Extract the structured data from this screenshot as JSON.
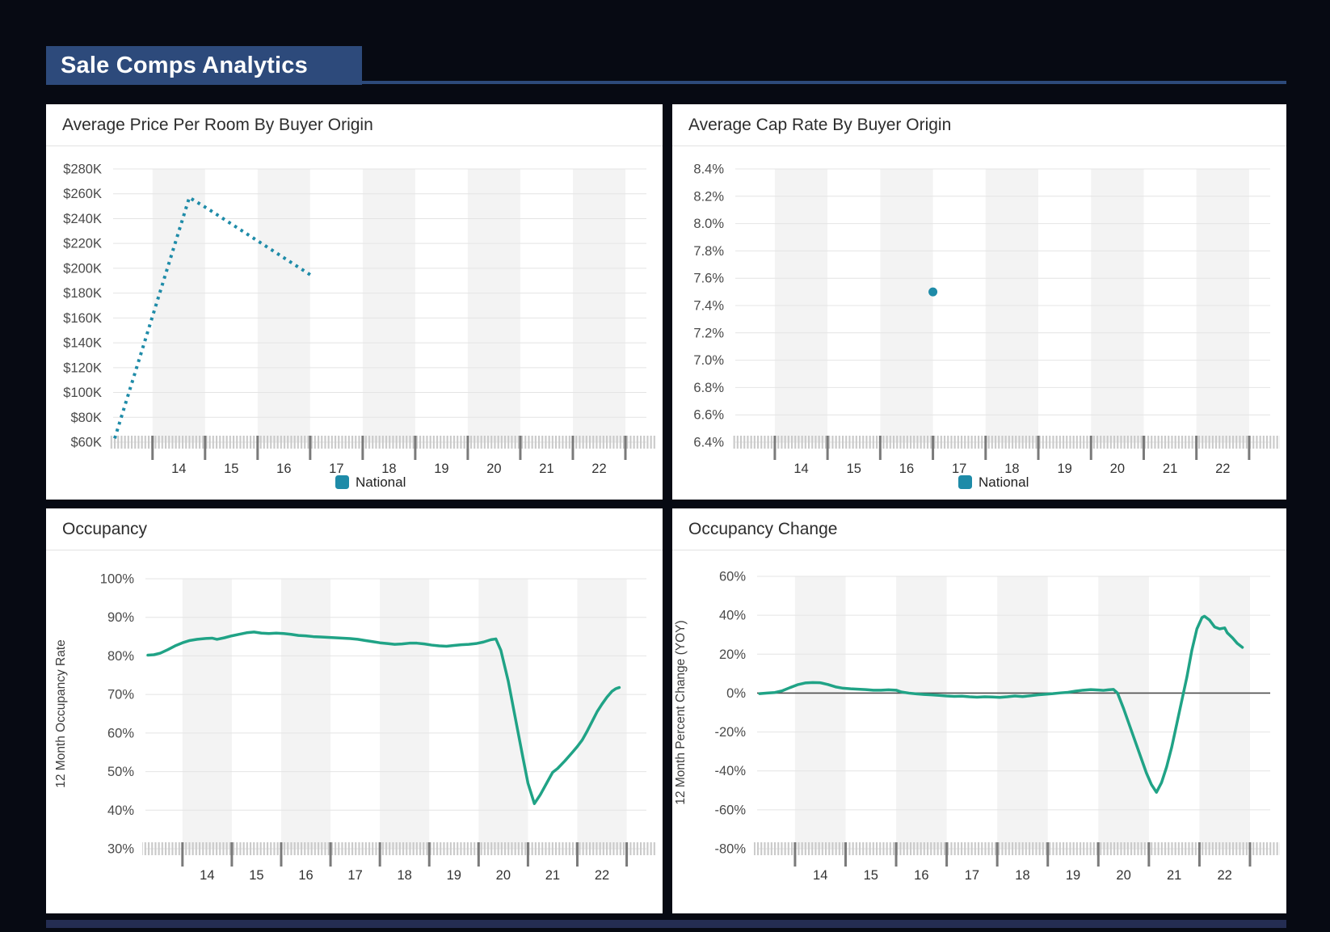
{
  "page": {
    "title": "Sale Comps Analytics"
  },
  "colors": {
    "accent_teal": "#1e8ba8",
    "accent_green": "#20a386",
    "band": "#f3f3f3",
    "grid": "#e4e4e4",
    "zero_line": "#4d4d4d",
    "tick_minor": "#c9c9c9",
    "tick_major": "#7a7a7a",
    "axis_text": "#4a4a4a",
    "x_label_text": "#333333",
    "legend_text": "#222222",
    "header_bg": "#2d4a7b",
    "footer_bg": "#242d52",
    "page_bg": "#070a13",
    "panel_bg": "#ffffff"
  },
  "axis": {
    "x_start": 2013.25,
    "x_end": 2023.4,
    "tick_years": [
      2014,
      2015,
      2016,
      2017,
      2018,
      2019,
      2020,
      2021,
      2022,
      2023
    ],
    "x_labels": [
      {
        "year": 2014,
        "label": "14"
      },
      {
        "year": 2015,
        "label": "15"
      },
      {
        "year": 2016,
        "label": "16"
      },
      {
        "year": 2017,
        "label": "17"
      },
      {
        "year": 2018,
        "label": "18"
      },
      {
        "year": 2019,
        "label": "19"
      },
      {
        "year": 2020,
        "label": "20"
      },
      {
        "year": 2021,
        "label": "21"
      },
      {
        "year": 2022,
        "label": "22"
      }
    ],
    "shaded_years": [
      2014,
      2016,
      2018,
      2020,
      2022
    ]
  },
  "chart_data": [
    {
      "id": "price-per-room-chart",
      "title": "Average Price Per Room By Buyer Origin",
      "type": "line",
      "line_style": "dotted",
      "series_color_key": "accent_teal",
      "legend": "National",
      "y_axis": {
        "max": 280,
        "min": 60,
        "tick_values": [
          280,
          260,
          240,
          220,
          200,
          180,
          160,
          140,
          120,
          100,
          80,
          60
        ],
        "tick_labels": [
          "$280K",
          "$260K",
          "$240K",
          "$220K",
          "$200K",
          "$180K",
          "$160K",
          "$140K",
          "$120K",
          "$100K",
          "$80K",
          "$60K"
        ]
      },
      "unit": "USD thousands per room",
      "points": [
        [
          2013.28,
          63
        ],
        [
          2014.7,
          257
        ],
        [
          2015.05,
          248
        ],
        [
          2017.03,
          194
        ]
      ]
    },
    {
      "id": "cap-rate-chart",
      "title": "Average Cap Rate By Buyer Origin",
      "type": "scatter",
      "series_color_key": "accent_teal",
      "legend": "National",
      "y_axis": {
        "max": 8.4,
        "min": 6.4,
        "tick_values": [
          8.4,
          8.2,
          8.0,
          7.8,
          7.6,
          7.4,
          7.2,
          7.0,
          6.8,
          6.6,
          6.4
        ],
        "tick_labels": [
          "8.4%",
          "8.2%",
          "8.0%",
          "7.8%",
          "7.6%",
          "7.4%",
          "7.2%",
          "7.0%",
          "6.8%",
          "6.6%",
          "6.4%"
        ]
      },
      "unit": "percent",
      "points": [
        [
          2017.0,
          7.5
        ]
      ]
    },
    {
      "id": "occupancy-chart",
      "title": "Occupancy",
      "type": "line",
      "line_style": "solid",
      "series_color_key": "accent_green",
      "y_label": "12 Month Occupancy Rate",
      "y_axis": {
        "max": 100,
        "min": 30,
        "tick_values": [
          100,
          90,
          80,
          70,
          60,
          50,
          40,
          30
        ],
        "tick_labels": [
          "100%",
          "90%",
          "80%",
          "70%",
          "60%",
          "50%",
          "40%",
          "30%"
        ]
      },
      "unit": "percent",
      "points": [
        [
          2013.3,
          80.2
        ],
        [
          2013.42,
          80.3
        ],
        [
          2013.55,
          80.7
        ],
        [
          2013.7,
          81.6
        ],
        [
          2013.85,
          82.6
        ],
        [
          2014.0,
          83.4
        ],
        [
          2014.15,
          84.0
        ],
        [
          2014.3,
          84.3
        ],
        [
          2014.45,
          84.5
        ],
        [
          2014.6,
          84.6
        ],
        [
          2014.7,
          84.3
        ],
        [
          2014.85,
          84.7
        ],
        [
          2015.0,
          85.2
        ],
        [
          2015.15,
          85.6
        ],
        [
          2015.3,
          86.0
        ],
        [
          2015.45,
          86.2
        ],
        [
          2015.6,
          85.9
        ],
        [
          2015.75,
          85.8
        ],
        [
          2015.9,
          85.9
        ],
        [
          2016.05,
          85.8
        ],
        [
          2016.2,
          85.6
        ],
        [
          2016.35,
          85.3
        ],
        [
          2016.5,
          85.2
        ],
        [
          2016.65,
          85.0
        ],
        [
          2016.8,
          84.9
        ],
        [
          2016.95,
          84.8
        ],
        [
          2017.1,
          84.7
        ],
        [
          2017.25,
          84.6
        ],
        [
          2017.4,
          84.5
        ],
        [
          2017.55,
          84.3
        ],
        [
          2017.7,
          84.0
        ],
        [
          2017.85,
          83.7
        ],
        [
          2018.0,
          83.4
        ],
        [
          2018.15,
          83.2
        ],
        [
          2018.3,
          83.0
        ],
        [
          2018.45,
          83.1
        ],
        [
          2018.6,
          83.3
        ],
        [
          2018.75,
          83.3
        ],
        [
          2018.9,
          83.1
        ],
        [
          2019.05,
          82.8
        ],
        [
          2019.2,
          82.6
        ],
        [
          2019.35,
          82.5
        ],
        [
          2019.5,
          82.7
        ],
        [
          2019.65,
          82.9
        ],
        [
          2019.8,
          83.0
        ],
        [
          2019.95,
          83.2
        ],
        [
          2020.1,
          83.6
        ],
        [
          2020.25,
          84.2
        ],
        [
          2020.35,
          84.4
        ],
        [
          2020.45,
          81.5
        ],
        [
          2020.6,
          73.5
        ],
        [
          2020.75,
          63.5
        ],
        [
          2020.9,
          53.5
        ],
        [
          2021.0,
          47.0
        ],
        [
          2021.13,
          41.7
        ],
        [
          2021.25,
          44.0
        ],
        [
          2021.4,
          47.5
        ],
        [
          2021.5,
          49.8
        ],
        [
          2021.6,
          50.8
        ],
        [
          2021.75,
          52.8
        ],
        [
          2021.9,
          55.0
        ],
        [
          2022.0,
          56.5
        ],
        [
          2022.1,
          58.2
        ],
        [
          2022.2,
          60.5
        ],
        [
          2022.3,
          63.0
        ],
        [
          2022.4,
          65.5
        ],
        [
          2022.5,
          67.5
        ],
        [
          2022.6,
          69.3
        ],
        [
          2022.7,
          70.8
        ],
        [
          2022.78,
          71.5
        ],
        [
          2022.85,
          71.8
        ]
      ]
    },
    {
      "id": "occupancy-change-chart",
      "title": "Occupancy Change",
      "type": "line",
      "line_style": "solid",
      "series_color_key": "accent_green",
      "y_label": "12 Month Percent Change (YOY)",
      "zero_line": true,
      "y_axis": {
        "max": 60,
        "min": -80,
        "tick_values": [
          60,
          40,
          20,
          0,
          -20,
          -40,
          -60,
          -80
        ],
        "tick_labels": [
          "60%",
          "40%",
          "20%",
          "0%",
          "-20%",
          "-40%",
          "-60%",
          "-80%"
        ]
      },
      "unit": "percent",
      "points": [
        [
          2013.3,
          -0.3
        ],
        [
          2013.45,
          0.0
        ],
        [
          2013.6,
          0.3
        ],
        [
          2013.75,
          1.2
        ],
        [
          2013.9,
          2.8
        ],
        [
          2014.05,
          4.3
        ],
        [
          2014.2,
          5.2
        ],
        [
          2014.35,
          5.4
        ],
        [
          2014.5,
          5.3
        ],
        [
          2014.65,
          4.4
        ],
        [
          2014.8,
          3.2
        ],
        [
          2014.95,
          2.5
        ],
        [
          2015.1,
          2.2
        ],
        [
          2015.25,
          2.0
        ],
        [
          2015.4,
          1.8
        ],
        [
          2015.55,
          1.5
        ],
        [
          2015.7,
          1.5
        ],
        [
          2015.85,
          1.7
        ],
        [
          2016.0,
          1.5
        ],
        [
          2016.1,
          0.6
        ],
        [
          2016.25,
          0.0
        ],
        [
          2016.4,
          -0.4
        ],
        [
          2016.55,
          -0.7
        ],
        [
          2016.7,
          -0.9
        ],
        [
          2016.85,
          -1.2
        ],
        [
          2017.0,
          -1.5
        ],
        [
          2017.15,
          -1.7
        ],
        [
          2017.3,
          -1.6
        ],
        [
          2017.45,
          -1.9
        ],
        [
          2017.6,
          -2.1
        ],
        [
          2017.75,
          -1.9
        ],
        [
          2017.9,
          -2.0
        ],
        [
          2018.05,
          -2.2
        ],
        [
          2018.2,
          -1.9
        ],
        [
          2018.35,
          -1.5
        ],
        [
          2018.5,
          -1.8
        ],
        [
          2018.65,
          -1.4
        ],
        [
          2018.8,
          -0.9
        ],
        [
          2018.95,
          -0.6
        ],
        [
          2019.1,
          -0.3
        ],
        [
          2019.25,
          0.1
        ],
        [
          2019.4,
          0.4
        ],
        [
          2019.55,
          1.0
        ],
        [
          2019.7,
          1.5
        ],
        [
          2019.85,
          1.8
        ],
        [
          2020.0,
          1.6
        ],
        [
          2020.1,
          1.4
        ],
        [
          2020.2,
          1.7
        ],
        [
          2020.3,
          1.9
        ],
        [
          2020.38,
          0.0
        ],
        [
          2020.5,
          -8
        ],
        [
          2020.65,
          -19
        ],
        [
          2020.8,
          -30
        ],
        [
          2020.95,
          -41
        ],
        [
          2021.05,
          -47
        ],
        [
          2021.15,
          -51
        ],
        [
          2021.25,
          -46
        ],
        [
          2021.35,
          -38
        ],
        [
          2021.45,
          -28
        ],
        [
          2021.55,
          -16
        ],
        [
          2021.65,
          -4
        ],
        [
          2021.75,
          8
        ],
        [
          2021.85,
          22
        ],
        [
          2021.95,
          33
        ],
        [
          2022.05,
          38.8
        ],
        [
          2022.1,
          39.5
        ],
        [
          2022.2,
          37.5
        ],
        [
          2022.3,
          34
        ],
        [
          2022.4,
          33
        ],
        [
          2022.5,
          33.5
        ],
        [
          2022.55,
          31
        ],
        [
          2022.65,
          28.5
        ],
        [
          2022.75,
          25.5
        ],
        [
          2022.85,
          23.5
        ]
      ]
    }
  ]
}
